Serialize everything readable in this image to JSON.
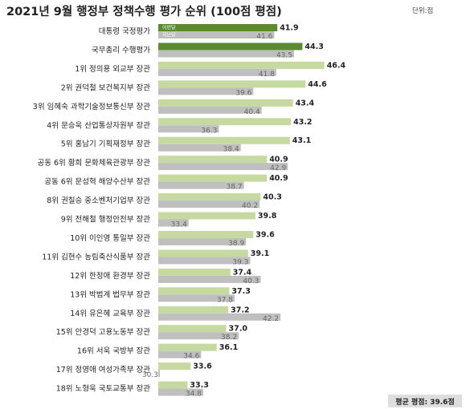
{
  "title": "2021년 9월 행정부 정책수행 평가 순위 (100점 평점)",
  "unit_label": "단위:점",
  "average_label": "평균 평점: 39.6점",
  "colors": {
    "current_top": "#5b8a32",
    "current": "#c5d9a1",
    "previous": "#bfbfbf"
  },
  "chart_data": {
    "type": "bar",
    "orientation": "horizontal",
    "title": "2021년 9월 행정부 정책수행 평가 순위 (100점 평점)",
    "unit": "단위:점",
    "categories": [
      "대통령 국정평가",
      "국무총리 수행평가",
      "1위 정의용 외교부 장관",
      "2위 권덕철 보건복지부 장관",
      "3위 임혜숙 과학기술정보통신부 장관",
      "4위 문승욱 산업통상자원부 장관",
      "5위 홍남기 기획재정부 장관",
      "공동 6위 황희 문화체육관광부 장관",
      "공동 6위 문성혁 해양수산부 장관",
      "8위 권칠승 중소벤처기업부 장관",
      "9위 전해철 행정안전부 장관",
      "10위 이인영 통일부 장관",
      "11위 김현수 농림축산식품부 장관",
      "12위 한정애 환경부 장관",
      "13위 박범계 법무부 장관",
      "14위 유은혜 교육부 장관",
      "15위 안경덕 고용노동부 장관",
      "16위 서욱 국방부 장관",
      "17위 정영애 여성가족부 장관",
      "18위 노형욱 국토교통부 장관"
    ],
    "series": [
      {
        "name": "이번달",
        "values": [
          41.9,
          44.3,
          46.4,
          44.6,
          43.4,
          43.2,
          43.1,
          40.9,
          40.9,
          40.3,
          39.8,
          39.6,
          39.1,
          37.4,
          37.3,
          37.2,
          37.0,
          36.1,
          33.6,
          33.3
        ]
      },
      {
        "name": "지난달",
        "values": [
          41.6,
          43.5,
          41.8,
          39.6,
          40.4,
          36.3,
          38.4,
          42.9,
          38.7,
          40.2,
          33.4,
          38.9,
          39.3,
          40.3,
          37.8,
          42.2,
          38.2,
          34.6,
          30.3,
          34.8
        ]
      }
    ],
    "average": 39.6,
    "grid": false,
    "legend": "inside-first-bars"
  }
}
